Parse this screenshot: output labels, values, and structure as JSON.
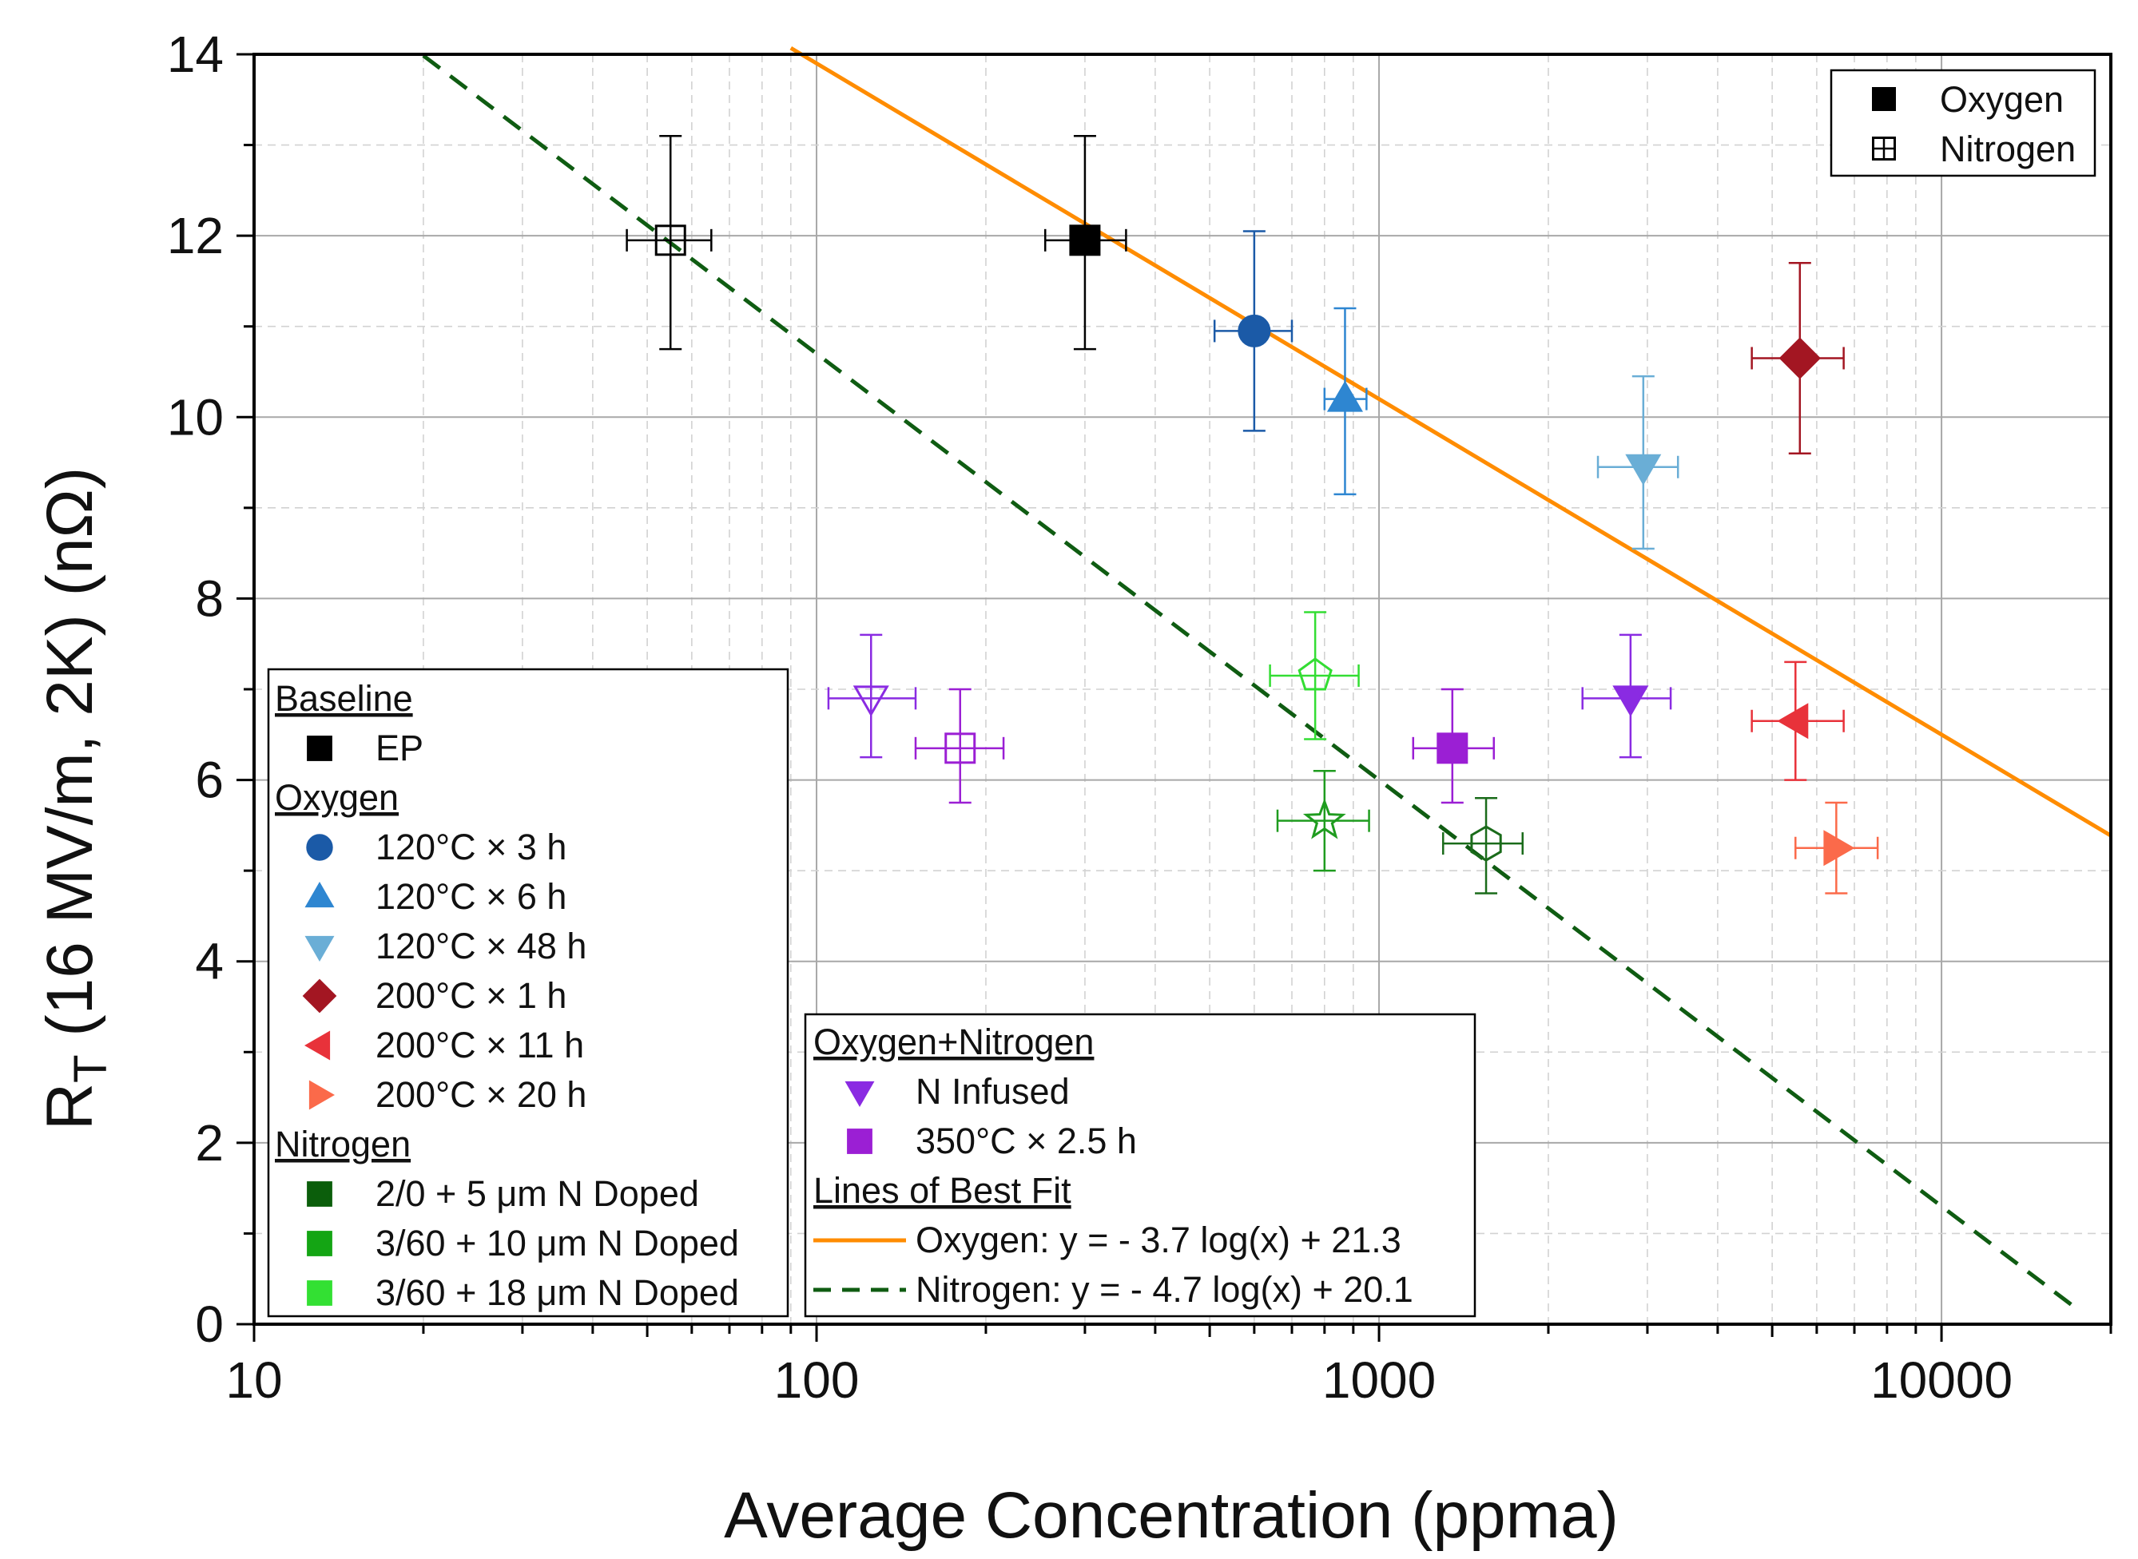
{
  "chart_data": {
    "type": "scatter",
    "xscale": "log",
    "xlabel": "Average Concentration (ppma)",
    "ylabel": "R",
    "ylabel_sub": "T",
    "ylabel_rest": " (16 MV/m, 2K) (nΩ)",
    "xlim": [
      10,
      20000
    ],
    "ylim": [
      0,
      14
    ],
    "xticks": [
      {
        "value": 10,
        "label": "10"
      },
      {
        "value": 100,
        "label": "100"
      },
      {
        "value": 1000,
        "label": "1000"
      },
      {
        "value": 10000,
        "label": "10000"
      }
    ],
    "yticks": [
      {
        "value": 0,
        "label": "0"
      },
      {
        "value": 2,
        "label": "2"
      },
      {
        "value": 4,
        "label": "4"
      },
      {
        "value": 6,
        "label": "6"
      },
      {
        "value": 8,
        "label": "8"
      },
      {
        "value": 10,
        "label": "10"
      },
      {
        "value": 12,
        "label": "12"
      },
      {
        "value": 14,
        "label": "14"
      }
    ],
    "grid": true,
    "points": [
      {
        "id": "ep-o",
        "group": "Baseline",
        "name": "EP (oxygen)",
        "x": 300,
        "y": 11.95,
        "xerr": [
          255,
          355
        ],
        "yerr": [
          10.75,
          13.1
        ],
        "marker": "square",
        "filled": true,
        "color": "#000000"
      },
      {
        "id": "ep-n",
        "group": "Baseline",
        "name": "EP (nitrogen)",
        "x": 55,
        "y": 11.95,
        "xerr": [
          46,
          65
        ],
        "yerr": [
          10.75,
          13.1
        ],
        "marker": "square",
        "filled": false,
        "color": "#000000"
      },
      {
        "id": "o-120-3",
        "group": "Oxygen",
        "name": "120°C × 3 h",
        "x": 600,
        "y": 10.95,
        "xerr": [
          510,
          700
        ],
        "yerr": [
          9.85,
          12.05
        ],
        "marker": "circle",
        "filled": true,
        "color": "#1b5aa7"
      },
      {
        "id": "o-120-6",
        "group": "Oxygen",
        "name": "120°C × 6 h",
        "x": 870,
        "y": 10.2,
        "xerr": [
          800,
          950
        ],
        "yerr": [
          9.15,
          11.2
        ],
        "marker": "triangle-up",
        "filled": true,
        "color": "#2e86d1"
      },
      {
        "id": "o-120-48",
        "group": "Oxygen",
        "name": "120°C × 48 h",
        "x": 2950,
        "y": 9.45,
        "xerr": [
          2450,
          3400
        ],
        "yerr": [
          8.55,
          10.45
        ],
        "marker": "triangle-down",
        "filled": true,
        "color": "#6aaed6"
      },
      {
        "id": "o-200-1",
        "group": "Oxygen",
        "name": "200°C × 1 h",
        "x": 5600,
        "y": 10.65,
        "xerr": [
          4600,
          6700
        ],
        "yerr": [
          9.6,
          11.7
        ],
        "marker": "diamond",
        "filled": true,
        "color": "#a31622"
      },
      {
        "id": "o-200-11",
        "group": "Oxygen",
        "name": "200°C × 11 h",
        "x": 5500,
        "y": 6.65,
        "xerr": [
          4600,
          6700
        ],
        "yerr": [
          6.0,
          7.3
        ],
        "marker": "triangle-left",
        "filled": true,
        "color": "#e8323a"
      },
      {
        "id": "o-200-20",
        "group": "Oxygen",
        "name": "200°C × 20 h",
        "x": 6500,
        "y": 5.25,
        "xerr": [
          5500,
          7700
        ],
        "yerr": [
          4.75,
          5.75
        ],
        "marker": "triangle-right",
        "filled": true,
        "color": "#fb6a4a"
      },
      {
        "id": "on-infused-o",
        "group": "Oxygen+Nitrogen",
        "name": "N Infused (oxygen)",
        "x": 2800,
        "y": 6.9,
        "xerr": [
          2300,
          3300
        ],
        "yerr": [
          6.25,
          7.6
        ],
        "marker": "triangle-down",
        "filled": true,
        "color": "#8a2be2"
      },
      {
        "id": "on-infused-n",
        "group": "Oxygen+Nitrogen",
        "name": "N Infused (nitrogen)",
        "x": 125,
        "y": 6.9,
        "xerr": [
          105,
          150
        ],
        "yerr": [
          6.25,
          7.6
        ],
        "marker": "triangle-down",
        "filled": false,
        "color": "#8a2be2"
      },
      {
        "id": "on-350-o",
        "group": "Oxygen+Nitrogen",
        "name": "350°C × 2.5 h (oxygen)",
        "x": 1350,
        "y": 6.35,
        "xerr": [
          1150,
          1600
        ],
        "yerr": [
          5.75,
          7.0
        ],
        "marker": "square",
        "filled": true,
        "color": "#9b1fd4"
      },
      {
        "id": "on-350-n",
        "group": "Oxygen+Nitrogen",
        "name": "350°C × 2.5 h (nitrogen)",
        "x": 180,
        "y": 6.35,
        "xerr": [
          150,
          215
        ],
        "yerr": [
          5.75,
          7.0
        ],
        "marker": "square",
        "filled": false,
        "color": "#9b1fd4"
      },
      {
        "id": "n-2-0",
        "group": "Nitrogen",
        "name": "2/0 + 5 μm N Doped",
        "x": 1550,
        "y": 5.3,
        "xerr": [
          1300,
          1800
        ],
        "yerr": [
          4.75,
          5.8
        ],
        "marker": "hexagon",
        "filled": false,
        "color": "#1a6b1a"
      },
      {
        "id": "n-3-60-10",
        "group": "Nitrogen",
        "name": "3/60 + 10 μm N Doped",
        "x": 800,
        "y": 5.55,
        "xerr": [
          660,
          960
        ],
        "yerr": [
          5.0,
          6.1
        ],
        "marker": "star",
        "filled": false,
        "color": "#1f9c1f"
      },
      {
        "id": "n-3-60-18",
        "group": "Nitrogen",
        "name": "3/60 + 18 μm N Doped",
        "x": 770,
        "y": 7.15,
        "xerr": [
          640,
          920
        ],
        "yerr": [
          6.45,
          7.85
        ],
        "marker": "pentagon",
        "filled": false,
        "color": "#33dd33"
      }
    ],
    "fits": [
      {
        "name": "Oxygen",
        "equation": "y = - 3.7 log(x) + 21.3",
        "slope": -3.7,
        "intercept": 21.3,
        "x_range": [
          90,
          20000
        ],
        "color": "#ff8c00",
        "dash": "solid"
      },
      {
        "name": "Nitrogen",
        "equation": "y = - 4.7 log(x) + 20.1",
        "slope": -4.7,
        "intercept": 20.1,
        "x_range": [
          20,
          17000
        ],
        "color": "#0f5c12",
        "dash": "dashed"
      }
    ],
    "legend_top": {
      "position": "top-right",
      "entries": [
        {
          "label": "Oxygen",
          "marker": "square",
          "filled": true
        },
        {
          "label": "Nitrogen",
          "marker": "square-plus",
          "filled": false
        }
      ]
    },
    "legend_left": {
      "position": "bottom-left",
      "groups": [
        {
          "heading": "Baseline",
          "items": [
            {
              "label": "EP",
              "marker": "square",
              "color": "#000000"
            }
          ]
        },
        {
          "heading": "Oxygen",
          "items": [
            {
              "label": "120°C × 3 h",
              "marker": "circle",
              "color": "#1b5aa7"
            },
            {
              "label": "120°C × 6 h",
              "marker": "triangle-up",
              "color": "#2e86d1"
            },
            {
              "label": "120°C × 48 h",
              "marker": "triangle-down",
              "color": "#6aaed6"
            },
            {
              "label": "200°C × 1 h",
              "marker": "diamond",
              "color": "#a31622"
            },
            {
              "label": "200°C × 11 h",
              "marker": "triangle-left",
              "color": "#e8323a"
            },
            {
              "label": "200°C × 20 h",
              "marker": "triangle-right",
              "color": "#fb6a4a"
            }
          ]
        },
        {
          "heading": "Nitrogen",
          "items": [
            {
              "label": "2/0 + 5 μm N Doped",
              "marker": "square",
              "color": "#0b5e0b"
            },
            {
              "label": "3/60 + 10 μm N Doped",
              "marker": "square",
              "color": "#14a514"
            },
            {
              "label": "3/60 + 18 μm N Doped",
              "marker": "square",
              "color": "#33e033"
            }
          ]
        }
      ]
    },
    "legend_mid": {
      "position": "bottom-center",
      "groups": [
        {
          "heading": "Oxygen+Nitrogen",
          "items": [
            {
              "label": "N Infused",
              "marker": "triangle-down",
              "color": "#8a2be2"
            },
            {
              "label": "350°C × 2.5 h",
              "marker": "square",
              "color": "#9b1fd4"
            }
          ]
        },
        {
          "heading": "Lines of Best Fit",
          "items": [
            {
              "label": "Oxygen:  y = - 3.7 log(x) + 21.3",
              "marker": "line-solid",
              "color": "#ff8c00"
            },
            {
              "label": "Nitrogen: y = - 4.7 log(x) + 20.1",
              "marker": "line-dashed",
              "color": "#0f5c12"
            }
          ]
        }
      ]
    }
  }
}
